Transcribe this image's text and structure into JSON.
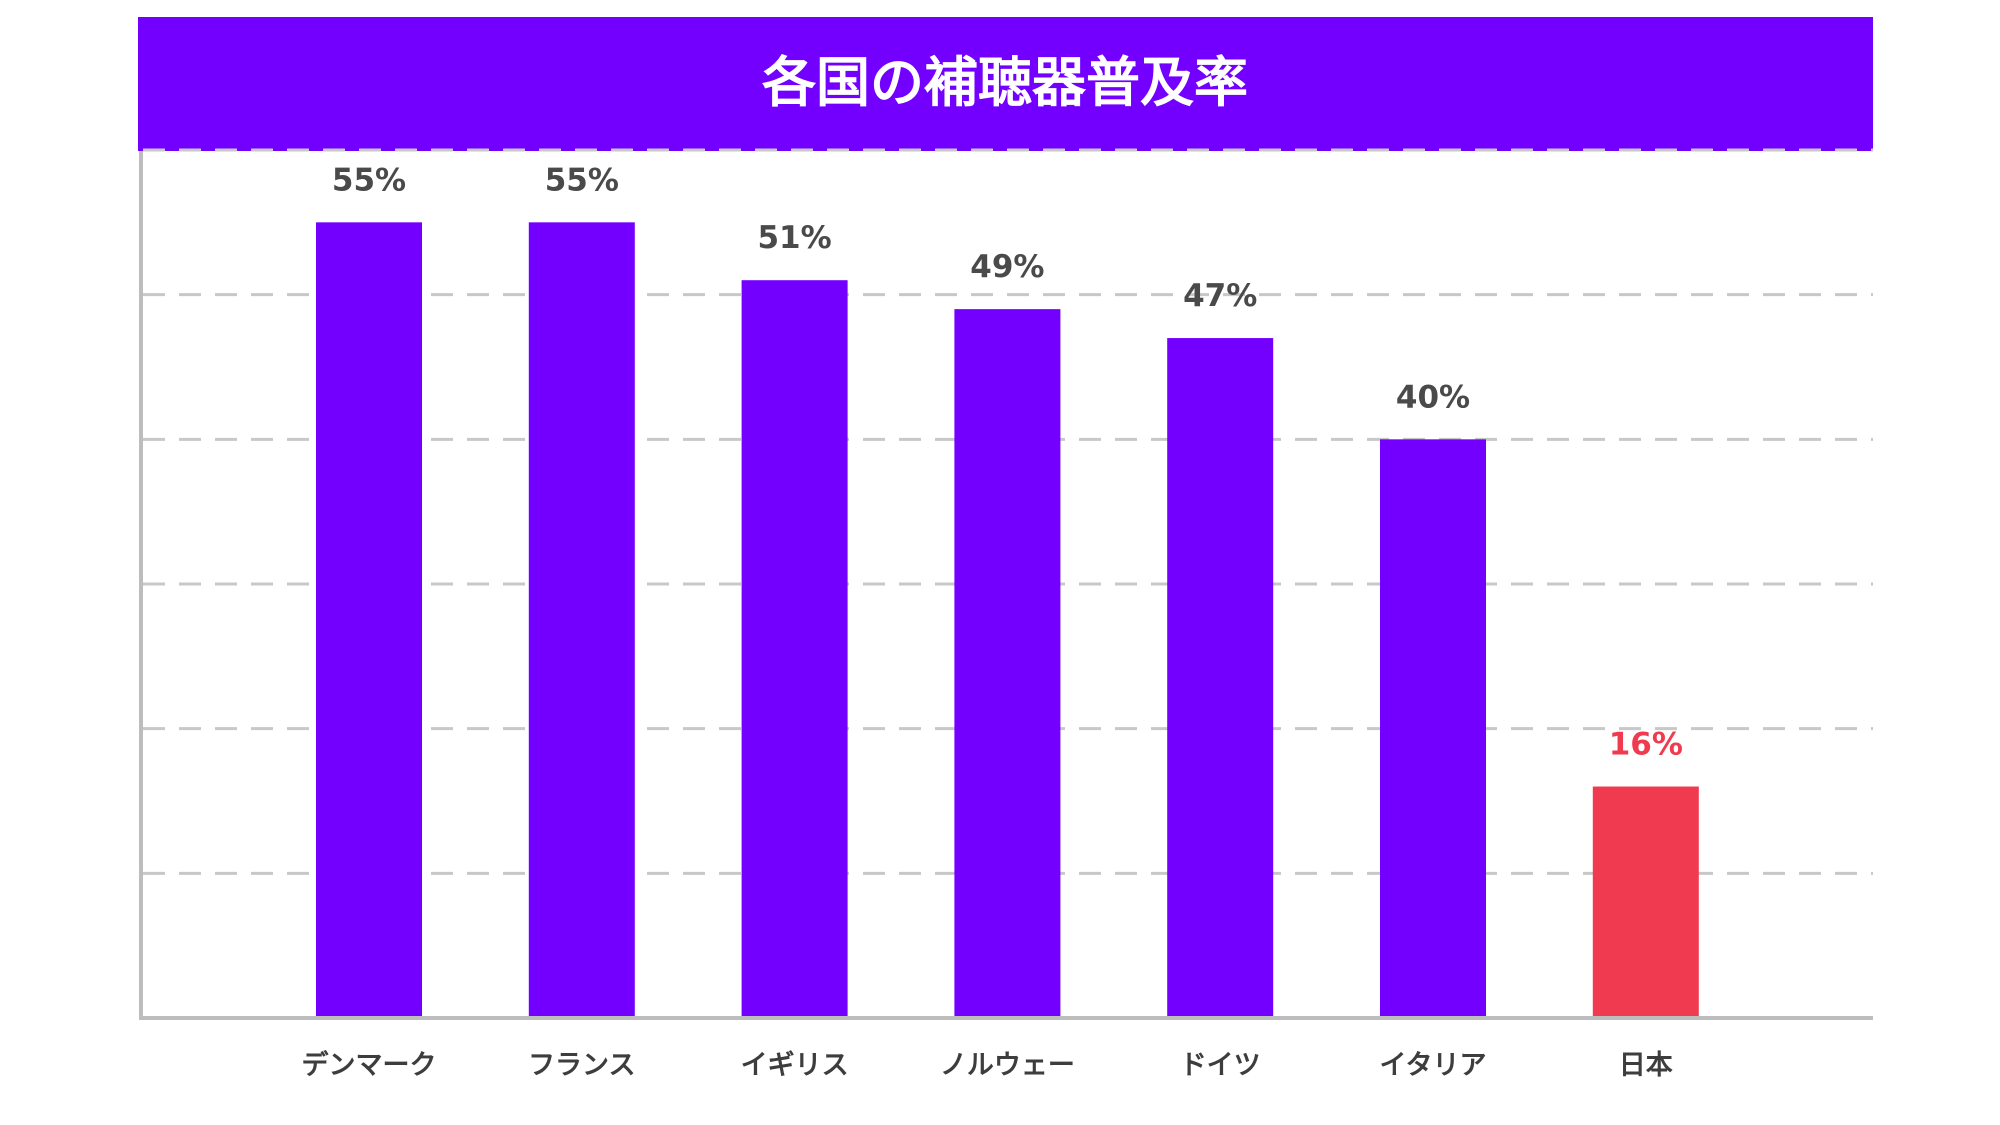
{
  "chart_data": {
    "type": "bar",
    "title": "各国の補聴器普及率",
    "categories": [
      "デンマーク",
      "フランス",
      "イギリス",
      "ノルウェー",
      "ドイツ",
      "イタリア",
      "日本"
    ],
    "values": [
      55,
      55,
      51,
      49,
      47,
      40,
      16
    ],
    "value_labels": [
      "55%",
      "55%",
      "51%",
      "49%",
      "47%",
      "40%",
      "16%"
    ],
    "highlight_index": 6,
    "ylim": [
      0,
      60
    ],
    "grid_step": 10,
    "grid": true,
    "grid_style": "dashed",
    "legend": false,
    "xlabel": "",
    "ylabel": "",
    "colors": {
      "title_bg": "#7300ff",
      "title_text": "#ffffff",
      "bar": "#7300ff",
      "highlight_bar": "#ef3a4f",
      "label": "#4a4a4a",
      "highlight_label": "#ef3a4f",
      "grid": "#c8c8c8",
      "axis": "#bdbdbd"
    }
  }
}
